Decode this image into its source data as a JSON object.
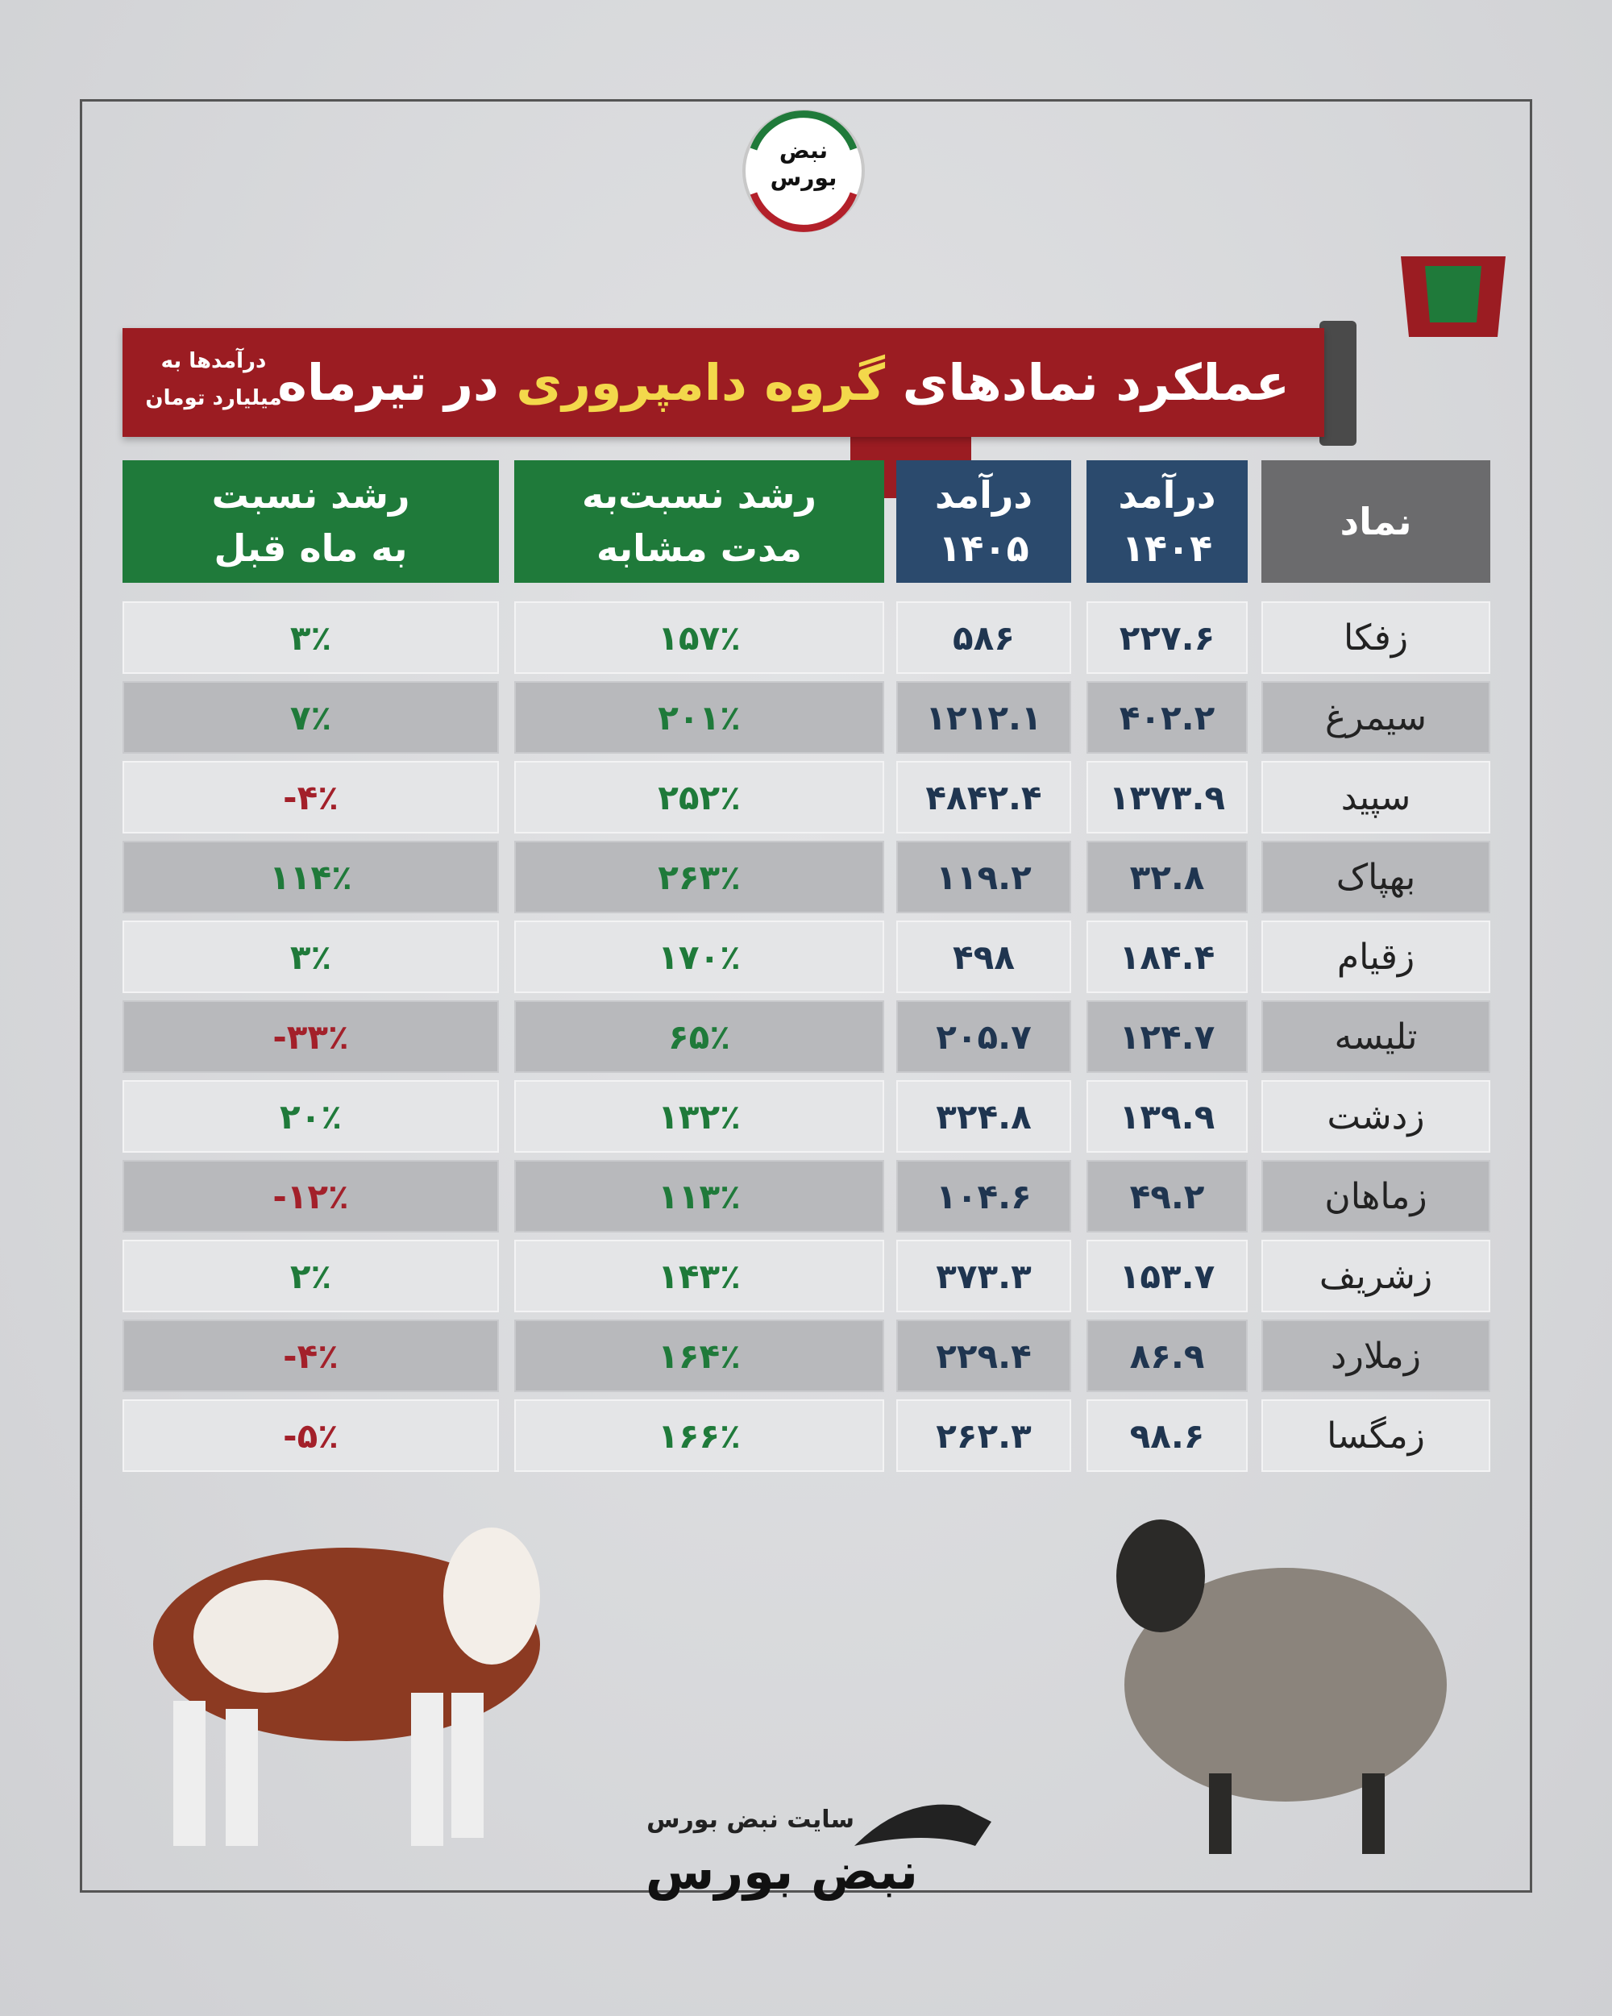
{
  "logo": {
    "line1": "نبض",
    "line2": "بورس"
  },
  "header": {
    "title_start": "عملکرد نمادهای",
    "title_highlight": "گروه دامپروری",
    "title_end": "در تیرماه",
    "note": [
      "درآمدها به",
      "میلیارد تومان"
    ]
  },
  "table": {
    "columns": [
      {
        "lines": [
          "نماد"
        ],
        "color": "#6b6b6d"
      },
      {
        "lines": [
          "درآمد",
          "۱۴۰۴"
        ],
        "color": "#2b4a6d"
      },
      {
        "lines": [
          "درآمد",
          "۱۴۰۵"
        ],
        "color": "#2b4a6d"
      },
      {
        "lines": [
          "رشد نسبت‌به",
          "مدت مشابه"
        ],
        "color": "#1f7a3a"
      },
      {
        "lines": [
          "رشد نسبت",
          "به ماه قبل"
        ],
        "color": "#1f7a3a"
      }
    ],
    "rows": [
      [
        "زفکا",
        "۲۲۷.۶",
        "۵۸۶",
        "۱۵۷٪",
        "۳٪"
      ],
      [
        "سیمرغ",
        "۴۰۲.۲",
        "۱۲۱۲.۱",
        "۲۰۱٪",
        "۷٪"
      ],
      [
        "سپید",
        "۱۳۷۳.۹",
        "۴۸۴۲.۴",
        "۲۵۲٪",
        "-۴٪"
      ],
      [
        "بهپاک",
        "۳۲.۸",
        "۱۱۹.۲",
        "۲۶۳٪",
        "۱۱۴٪"
      ],
      [
        "زقیام",
        "۱۸۴.۴",
        "۴۹۸",
        "۱۷۰٪",
        "۳٪"
      ],
      [
        "تلیسه",
        "۱۲۴.۷",
        "۲۰۵.۷",
        "۶۵٪",
        "-۳۳٪"
      ],
      [
        "زدشت",
        "۱۳۹.۹",
        "۳۲۴.۸",
        "۱۳۲٪",
        "۲۰٪"
      ],
      [
        "زماهان",
        "۴۹.۲",
        "۱۰۴.۶",
        "۱۱۳٪",
        "-۱۲٪"
      ],
      [
        "زشریف",
        "۱۵۳.۷",
        "۳۷۳.۳",
        "۱۴۳٪",
        "۲٪"
      ],
      [
        "زملارد",
        "۸۶.۹",
        "۲۲۹.۴",
        "۱۶۴٪",
        "-۴٪"
      ],
      [
        "زمگسا",
        "۹۸.۶",
        "۲۶۲.۳",
        "۱۶۶٪",
        "-۵٪"
      ]
    ]
  },
  "footer": {
    "site": "سایت نبض بورس",
    "brand": "نبض بورس"
  }
}
